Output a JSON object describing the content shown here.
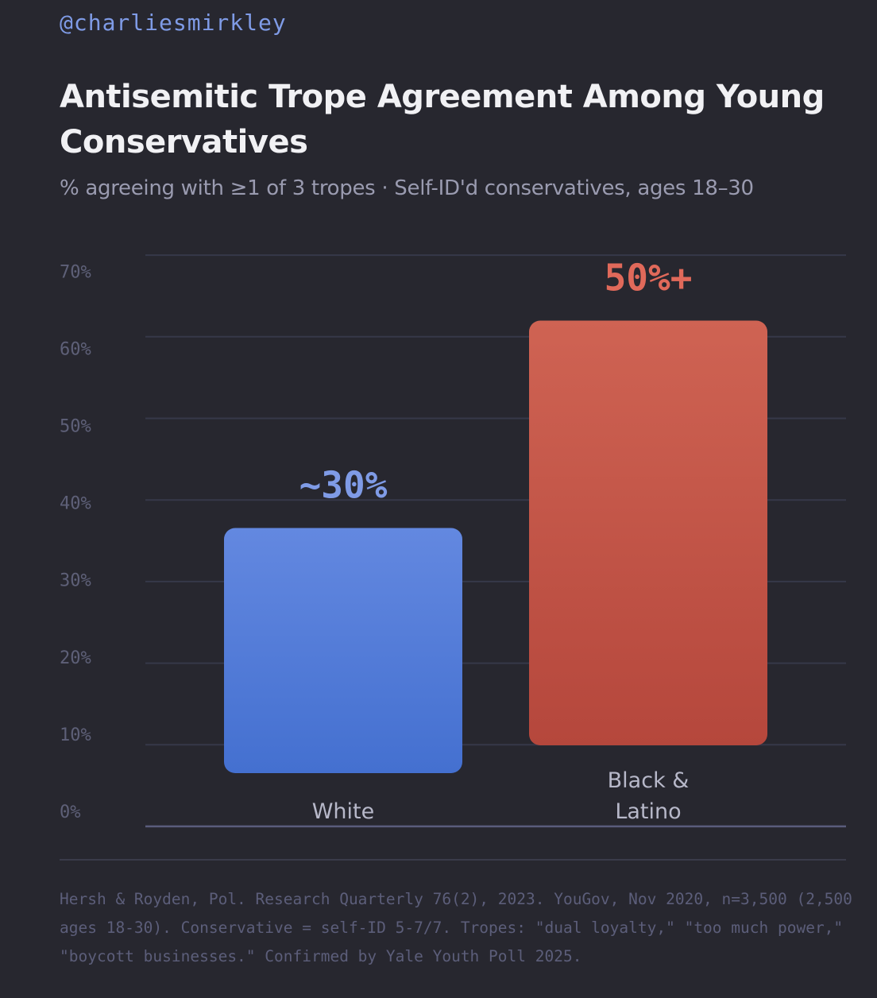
{
  "handle": "@charliesmirkley",
  "colors": {
    "white_bar": "#4f7ad8",
    "red_bar": "#c9584a",
    "white_label": "#7f9be6",
    "red_label": "#e0695a"
  },
  "chart_data": {
    "type": "bar",
    "title": "Antisemitic Trope Agreement Among Young Conservatives",
    "subtitle": "% agreeing with ≥1 of 3 tropes · Self-ID'd conservatives, ages 18–30",
    "xlabel": "",
    "ylabel": "",
    "ylim": [
      0,
      70
    ],
    "grid": true,
    "yticks": [
      0,
      10,
      20,
      30,
      40,
      50,
      60,
      70
    ],
    "ytick_labels": [
      "0%",
      "10%",
      "20%",
      "30%",
      "40%",
      "50%",
      "60%",
      "70%"
    ],
    "categories": [
      "White",
      "Black & Latino"
    ],
    "category_lines": [
      [
        "White"
      ],
      [
        "Black &",
        "Latino"
      ]
    ],
    "values": [
      30,
      50
    ],
    "data_labels": [
      "~30%",
      "50%+"
    ]
  },
  "footnote": "Hersh & Royden, Pol. Research Quarterly 76(2), 2023. YouGov, Nov 2020, n=3,500 (2,500 ages 18-30). Conservative = self-ID 5-7/7. Tropes: \"dual loyalty,\" \"too much power,\" \"boycott businesses.\" Confirmed by Yale Youth Poll 2025."
}
